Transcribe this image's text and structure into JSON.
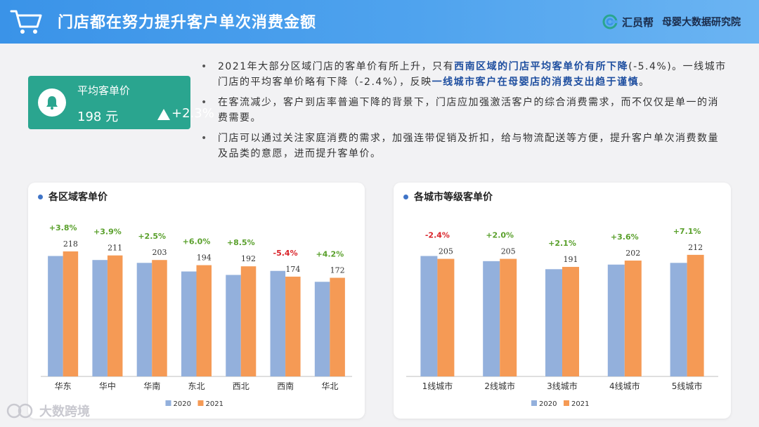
{
  "header": {
    "title": "门店都在努力提升客户单次消费金额",
    "brand_name": "汇员帮",
    "brand_sub": "母婴大数据研究院"
  },
  "kpi": {
    "label": "平均客单价",
    "value": "198 元",
    "change": "+2.3%"
  },
  "bullets": [
    {
      "a": "2021年大部分区域门店的客单价有所上升，只有",
      "b": "西南区域的门店平均客单价有所下降",
      "c": "(-5.4%)。一线城市门店的平均客单价略有下降（-2.4%），反映",
      "d": "一线城市客户在母婴店的消费支出趋于谨慎",
      "e": "。"
    },
    {
      "text": "在客流减少，客户到店率普遍下降的背景下，门店应加强激活客户的综合消费需求，而不仅仅是单一的消费需要。"
    },
    {
      "text": "门店可以通过关注家庭消费的需求，加强连带促销及折扣，给与物流配送等方便，提升客户单次消费数量及品类的意愿，进而提升客单价。"
    }
  ],
  "colors": {
    "s2020": "#93b0dc",
    "s2021": "#f59a55",
    "up": "#5aa02c",
    "down": "#d9242a"
  },
  "watermark": "大数跨境",
  "chart_data": [
    {
      "type": "bar",
      "title": "各区域客单价",
      "categories": [
        "华东",
        "华中",
        "华南",
        "东北",
        "西北",
        "西南",
        "华北"
      ],
      "series": [
        {
          "name": "2020",
          "values": [
            210,
            203,
            198,
            183,
            177,
            184,
            165
          ]
        },
        {
          "name": "2021",
          "values": [
            218,
            211,
            203,
            194,
            192,
            174,
            172
          ]
        }
      ],
      "value_labels": [
        "218",
        "211",
        "203",
        "194",
        "192",
        "174",
        "172"
      ],
      "changes": [
        "+3.8%",
        "+3.9%",
        "+2.5%",
        "+6.0%",
        "+8.5%",
        "-5.4%",
        "+4.2%"
      ],
      "ylim": [
        0,
        240
      ],
      "legend": "bottom"
    },
    {
      "type": "bar",
      "title": "各城市等级客单价",
      "categories": [
        "1线城市",
        "2线城市",
        "3线城市",
        "4线城市",
        "5线城市"
      ],
      "series": [
        {
          "name": "2020",
          "values": [
            210,
            201,
            187,
            195,
            198
          ]
        },
        {
          "name": "2021",
          "values": [
            205,
            205,
            191,
            202,
            212
          ]
        }
      ],
      "value_labels": [
        "205",
        "205",
        "191",
        "202",
        "212"
      ],
      "changes": [
        "-2.4%",
        "+2.0%",
        "+2.1%",
        "+3.6%",
        "+7.1%"
      ],
      "ylim": [
        0,
        240
      ],
      "legend": "bottom"
    }
  ]
}
